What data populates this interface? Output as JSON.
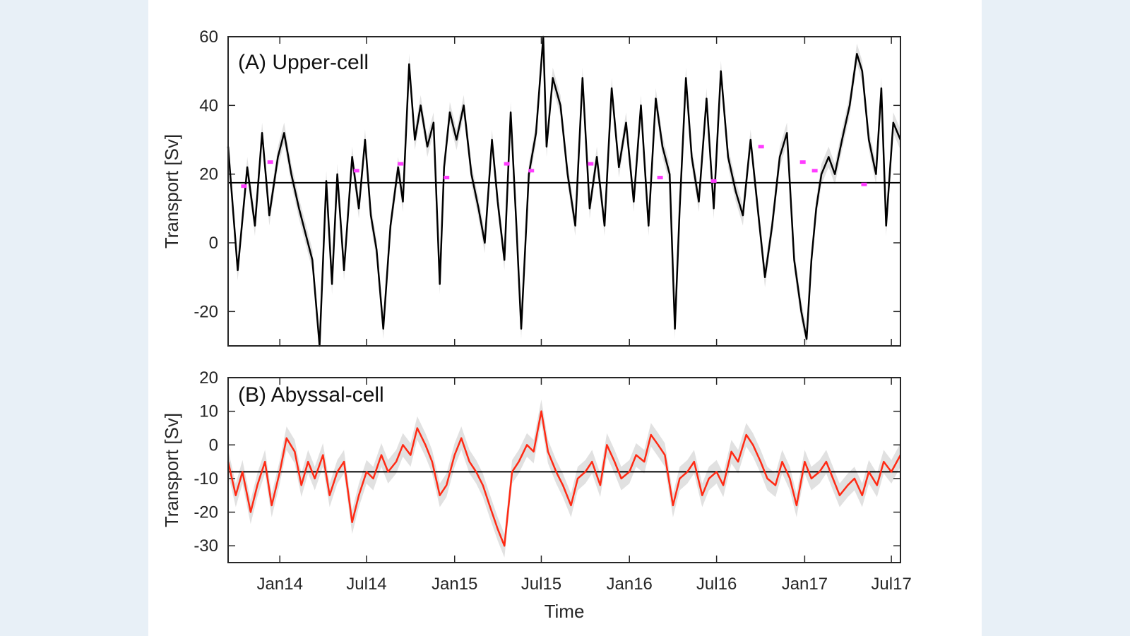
{
  "colors": {
    "background": "#e8f0f7",
    "panel": "#ffffff",
    "upper_series": "#000000",
    "abyssal_series": "#ff2a14",
    "spread_band": "#c8c8c8",
    "markers": "#ff3cff",
    "mean_line": "#000000"
  },
  "chart_data": [
    {
      "type": "line",
      "title": "(A) Upper-cell",
      "xlabel": "",
      "ylabel": "Transport [Sv]",
      "ylim": [
        -30,
        60
      ],
      "yticks": [
        "-20",
        "0",
        "20",
        "40",
        "60"
      ],
      "xlim": [
        "2013-09-15",
        "2017-07-20"
      ],
      "mean_value": 17.5,
      "series": [
        {
          "x": [
            "2013-09-15",
            "2013-10-05",
            "2013-10-25",
            "2013-11-10",
            "2013-11-25",
            "2013-12-10",
            "2013-12-28",
            "2014-01-10",
            "2014-01-25",
            "2014-02-10",
            "2014-02-25",
            "2014-03-10",
            "2014-03-25",
            "2014-04-08",
            "2014-04-20",
            "2014-05-01",
            "2014-05-15",
            "2014-06-01",
            "2014-06-15",
            "2014-06-28",
            "2014-07-10",
            "2014-07-22",
            "2014-08-05",
            "2014-08-20",
            "2014-09-05",
            "2014-09-15",
            "2014-09-28",
            "2014-10-10",
            "2014-10-22",
            "2014-11-05",
            "2014-11-18",
            "2014-12-01",
            "2014-12-10",
            "2014-12-22",
            "2015-01-05",
            "2015-01-20",
            "2015-02-05",
            "2015-02-20",
            "2015-03-05",
            "2015-03-20",
            "2015-04-01",
            "2015-04-15",
            "2015-04-28",
            "2015-05-10",
            "2015-05-20",
            "2015-06-05",
            "2015-06-20",
            "2015-07-05",
            "2015-07-12",
            "2015-07-25",
            "2015-08-10",
            "2015-08-25",
            "2015-09-10",
            "2015-09-25",
            "2015-10-10",
            "2015-10-25",
            "2015-11-10",
            "2015-11-25",
            "2015-12-10",
            "2015-12-25",
            "2016-01-10",
            "2016-01-25",
            "2016-02-10",
            "2016-02-25",
            "2016-03-10",
            "2016-03-25",
            "2016-04-05",
            "2016-04-15",
            "2016-04-28",
            "2016-05-10",
            "2016-05-25",
            "2016-06-10",
            "2016-06-25",
            "2016-07-10",
            "2016-07-25",
            "2016-08-10",
            "2016-08-25",
            "2016-09-10",
            "2016-09-25",
            "2016-10-10",
            "2016-10-25",
            "2016-11-10",
            "2016-11-25",
            "2016-12-10",
            "2016-12-25",
            "2017-01-05",
            "2017-01-15",
            "2017-01-25",
            "2017-02-05",
            "2017-02-20",
            "2017-03-05",
            "2017-03-20",
            "2017-04-05",
            "2017-04-20",
            "2017-05-01",
            "2017-05-15",
            "2017-05-30",
            "2017-06-10",
            "2017-06-20",
            "2017-07-05",
            "2017-07-20"
          ],
          "values": [
            28,
            -8,
            22,
            5,
            32,
            8,
            25,
            32,
            20,
            10,
            2,
            -5,
            -30,
            18,
            -12,
            20,
            -8,
            25,
            10,
            30,
            8,
            -2,
            -25,
            5,
            22,
            12,
            52,
            30,
            40,
            28,
            35,
            -12,
            22,
            38,
            30,
            40,
            20,
            10,
            0,
            30,
            12,
            -5,
            38,
            5,
            -25,
            20,
            32,
            60,
            28,
            48,
            40,
            20,
            5,
            48,
            10,
            25,
            5,
            45,
            22,
            35,
            12,
            40,
            5,
            42,
            28,
            20,
            -25,
            10,
            48,
            25,
            12,
            42,
            10,
            50,
            25,
            15,
            8,
            30,
            10,
            -10,
            5,
            25,
            32,
            -5,
            -20,
            -28,
            -5,
            10,
            20,
            25,
            20,
            30,
            40,
            55,
            50,
            30,
            20,
            45,
            5,
            35,
            30
          ]
        }
      ],
      "markers": [
        {
          "x": "2013-10-18",
          "y": 16.5
        },
        {
          "x": "2013-12-12",
          "y": 23.5
        },
        {
          "x": "2014-06-10",
          "y": 21
        },
        {
          "x": "2014-09-10",
          "y": 23
        },
        {
          "x": "2014-12-15",
          "y": 19
        },
        {
          "x": "2015-04-20",
          "y": 23
        },
        {
          "x": "2015-06-10",
          "y": 21
        },
        {
          "x": "2015-10-12",
          "y": 23
        },
        {
          "x": "2016-03-05",
          "y": 19
        },
        {
          "x": "2016-06-25",
          "y": 18
        },
        {
          "x": "2016-10-02",
          "y": 28
        },
        {
          "x": "2016-12-28",
          "y": 23.5
        },
        {
          "x": "2017-01-22",
          "y": 21
        },
        {
          "x": "2017-05-05",
          "y": 17
        }
      ]
    },
    {
      "type": "line",
      "title": "(B) Abyssal-cell",
      "xlabel": "Time",
      "ylabel": "Transport [Sv]",
      "ylim": [
        -35,
        20
      ],
      "yticks": [
        "-30",
        "-20",
        "-10",
        "0",
        "10",
        "20"
      ],
      "xlim": [
        "2013-09-15",
        "2017-07-20"
      ],
      "xticks": [
        "Jan14",
        "Jul14",
        "Jan15",
        "Jul15",
        "Jan16",
        "Jul16",
        "Jan17",
        "Jul17"
      ],
      "xtick_dates": [
        "2014-01-01",
        "2014-07-01",
        "2015-01-01",
        "2015-07-01",
        "2016-01-01",
        "2016-07-01",
        "2017-01-01",
        "2017-07-01"
      ],
      "mean_value": -8,
      "series": [
        {
          "x": [
            "2013-09-15",
            "2013-10-01",
            "2013-10-15",
            "2013-11-01",
            "2013-11-15",
            "2013-12-01",
            "2013-12-15",
            "2014-01-01",
            "2014-01-15",
            "2014-02-01",
            "2014-02-15",
            "2014-03-01",
            "2014-03-15",
            "2014-04-01",
            "2014-04-15",
            "2014-05-01",
            "2014-05-15",
            "2014-06-01",
            "2014-06-15",
            "2014-07-01",
            "2014-07-15",
            "2014-08-01",
            "2014-08-15",
            "2014-09-01",
            "2014-09-15",
            "2014-10-01",
            "2014-10-15",
            "2014-11-01",
            "2014-11-15",
            "2014-12-01",
            "2014-12-15",
            "2015-01-01",
            "2015-01-15",
            "2015-02-01",
            "2015-02-15",
            "2015-03-01",
            "2015-03-15",
            "2015-04-01",
            "2015-04-15",
            "2015-05-01",
            "2015-05-15",
            "2015-06-01",
            "2015-06-15",
            "2015-07-01",
            "2015-07-15",
            "2015-08-01",
            "2015-08-15",
            "2015-09-01",
            "2015-09-15",
            "2015-10-01",
            "2015-10-15",
            "2015-11-01",
            "2015-11-15",
            "2015-12-01",
            "2015-12-15",
            "2016-01-01",
            "2016-01-15",
            "2016-02-01",
            "2016-02-15",
            "2016-03-01",
            "2016-03-15",
            "2016-04-01",
            "2016-04-15",
            "2016-05-01",
            "2016-05-15",
            "2016-06-01",
            "2016-06-15",
            "2016-07-01",
            "2016-07-15",
            "2016-08-01",
            "2016-08-15",
            "2016-09-01",
            "2016-09-15",
            "2016-10-01",
            "2016-10-15",
            "2016-11-01",
            "2016-11-15",
            "2016-12-01",
            "2016-12-15",
            "2017-01-01",
            "2017-01-15",
            "2017-02-01",
            "2017-02-15",
            "2017-03-01",
            "2017-03-15",
            "2017-04-01",
            "2017-04-15",
            "2017-05-01",
            "2017-05-15",
            "2017-06-01",
            "2017-06-15",
            "2017-07-01",
            "2017-07-20"
          ],
          "values": [
            -5,
            -15,
            -8,
            -20,
            -12,
            -5,
            -18,
            -8,
            2,
            -2,
            -12,
            -5,
            -10,
            -3,
            -15,
            -8,
            -5,
            -23,
            -15,
            -8,
            -10,
            -3,
            -8,
            -5,
            0,
            -3,
            5,
            0,
            -5,
            -15,
            -12,
            -3,
            2,
            -5,
            -8,
            -12,
            -18,
            -25,
            -30,
            -8,
            -5,
            0,
            -2,
            10,
            -2,
            -8,
            -12,
            -18,
            -10,
            -8,
            -5,
            -12,
            0,
            -5,
            -10,
            -8,
            -3,
            -5,
            3,
            0,
            -3,
            -18,
            -10,
            -8,
            -5,
            -15,
            -10,
            -8,
            -12,
            -2,
            -5,
            3,
            0,
            -5,
            -10,
            -12,
            -5,
            -10,
            -18,
            -5,
            -10,
            -8,
            -5,
            -10,
            -15,
            -12,
            -10,
            -15,
            -8,
            -12,
            -5,
            -8,
            -3
          ]
        }
      ]
    }
  ]
}
